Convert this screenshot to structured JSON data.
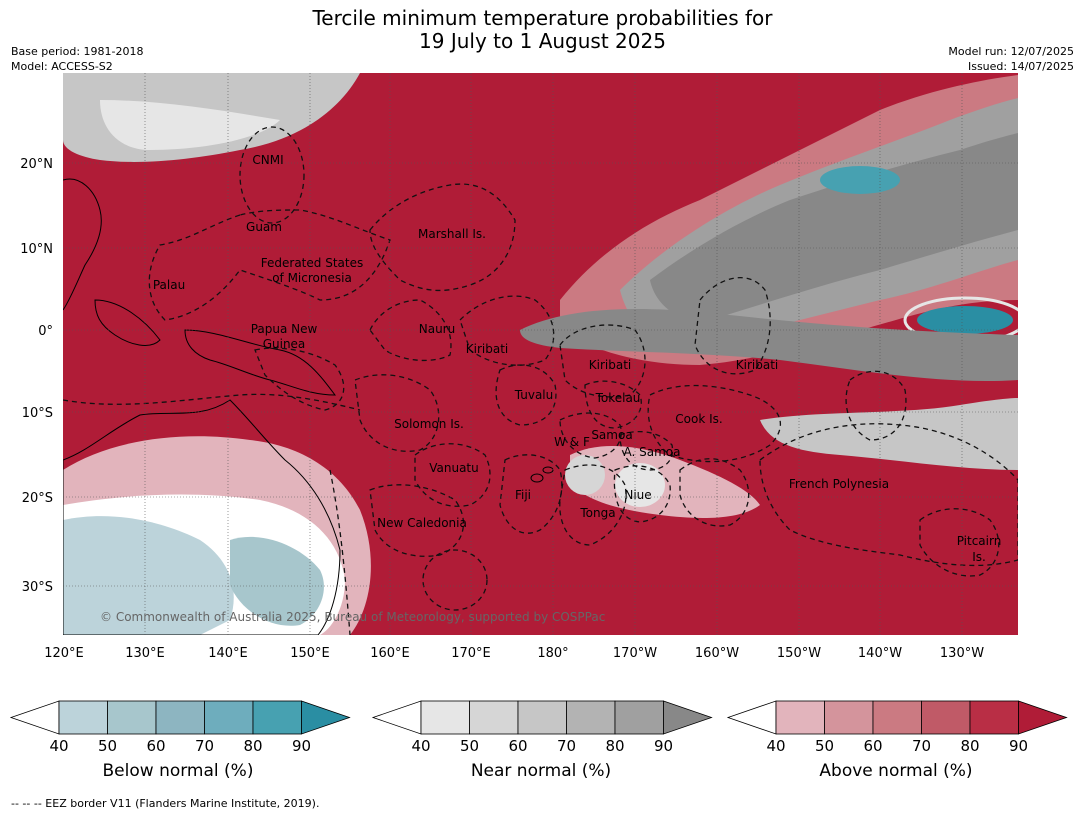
{
  "title_line1": "Tercile minimum temperature probabilities for",
  "title_line2": "19 July to 1 August 2025",
  "base_period": "Base period: 1981-2018",
  "model": "Model: ACCESS-S2",
  "model_run": "Model run: 12/07/2025",
  "issued": "Issued: 14/07/2025",
  "copyright": "© Commonwealth of Australia 2025, Bureau of Meteorology, supported by COSPPac",
  "lat_labels": [
    "20°N",
    "10°N",
    "0°",
    "10°S",
    "20°S",
    "30°S"
  ],
  "lon_labels": [
    "120°E",
    "130°E",
    "140°E",
    "150°E",
    "160°E",
    "170°E",
    "180°",
    "170°W",
    "160°W",
    "150°W",
    "140°W",
    "130°W"
  ],
  "region_labels": [
    "CNMI",
    "Guam",
    "Marshall Is.",
    "Palau",
    "Federated States",
    "of Micronesia",
    "Papua New",
    "Guinea",
    "Nauru",
    "Kiribati",
    "Kiribati",
    "Kiribati",
    "Tuvalu",
    "Tokelau",
    "Cook Is.",
    "Solomon Is.",
    "Samoa",
    "W & F",
    "A. Samoa",
    "Vanuatu",
    "Fiji",
    "Niue",
    "Tonga",
    "French Polynesia",
    "New Caledonia",
    "Pitcairn",
    "Is."
  ],
  "colorbars": [
    {
      "label": "Below normal (%)",
      "ticks": [
        "40",
        "50",
        "60",
        "70",
        "80",
        "90"
      ],
      "colors": [
        "#ffffff",
        "#bcd3da",
        "#a7c6cc",
        "#8db5c1",
        "#6eadbd",
        "#47a1b1",
        "#2a8ea3"
      ]
    },
    {
      "label": "Near normal (%)",
      "ticks": [
        "40",
        "50",
        "60",
        "70",
        "80",
        "90"
      ],
      "colors": [
        "#ffffff",
        "#e6e6e6",
        "#d6d6d6",
        "#c6c6c6",
        "#b3b3b3",
        "#a0a0a0",
        "#888888"
      ]
    },
    {
      "label": "Above normal (%)",
      "ticks": [
        "40",
        "50",
        "60",
        "70",
        "80",
        "90"
      ],
      "colors": [
        "#ffffff",
        "#e2b4bc",
        "#d4949c",
        "#cb7a82",
        "#c05a67",
        "#b92e45",
        "#b01c37"
      ]
    }
  ],
  "footnote": "--  --  -- EEZ border V11 (Flanders Marine Institute, 2019)."
}
